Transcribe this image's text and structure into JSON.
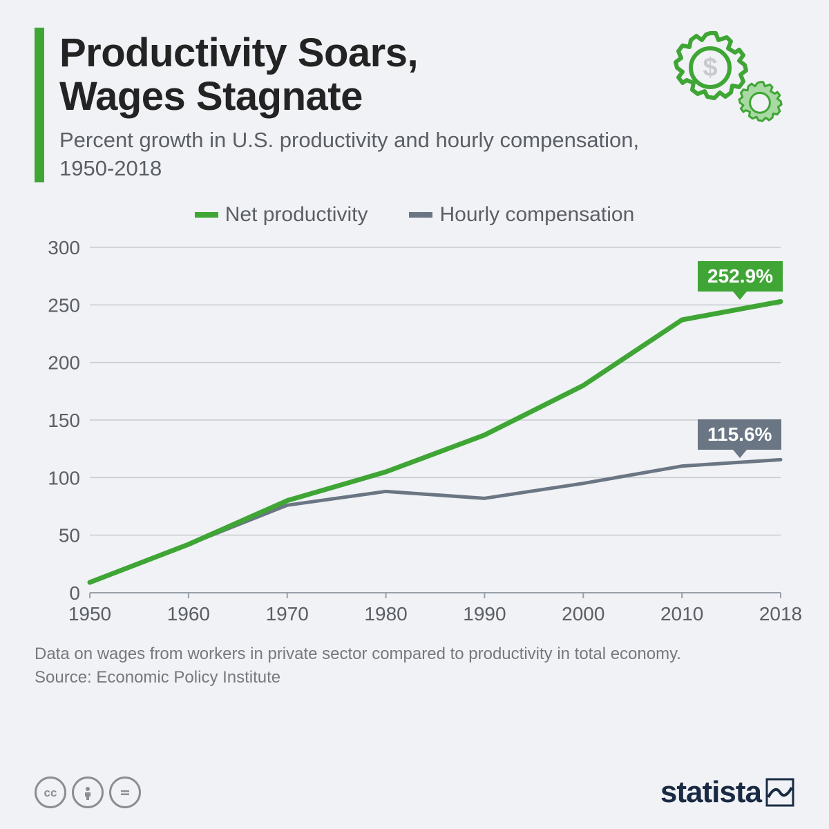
{
  "header": {
    "title_line1": "Productivity Soars,",
    "title_line2": "Wages Stagnate",
    "subtitle": "Percent growth in U.S. productivity and hourly compensation, 1950-2018",
    "accent_color": "#3fa535"
  },
  "icon": {
    "gear_stroke": "#3fa535",
    "gear_fill_small": "#a9d9a3",
    "dollar_color": "#c7cacf"
  },
  "legend": {
    "series1_label": "Net productivity",
    "series1_color": "#3fa535",
    "series2_label": "Hourly compensation",
    "series2_color": "#6b7684"
  },
  "chart": {
    "type": "line",
    "x_labels": [
      "1950",
      "1960",
      "1970",
      "1980",
      "1990",
      "2000",
      "2010",
      "2018"
    ],
    "y_ticks": [
      0,
      50,
      100,
      150,
      200,
      250,
      300
    ],
    "ylim": [
      0,
      300
    ],
    "axis_fontsize": 28,
    "axis_color": "#5a5e66",
    "grid_color": "#c7cacf",
    "grid_baseline_color": "#9aa0a8",
    "background_color": "#f0f2f5",
    "line_width_primary": 7,
    "line_width_secondary": 5,
    "series": {
      "net_productivity": {
        "color": "#3fa535",
        "values": [
          9,
          42,
          80,
          105,
          137,
          180,
          237,
          252.9
        ],
        "end_label": "252.9%"
      },
      "hourly_compensation": {
        "color": "#6b7684",
        "values": [
          9,
          42,
          76,
          88,
          82,
          95,
          110,
          115.6
        ],
        "end_label": "115.6%"
      }
    },
    "callout_productivity_bg": "#3fa535",
    "callout_compensation_bg": "#6b7684"
  },
  "footer": {
    "footnote": "Data on wages from workers in private sector compared to productivity in total economy.",
    "source": "Source: Economic Policy Institute",
    "brand": "statista",
    "cc_color": "#8a8d93",
    "brand_color": "#1a2a44"
  }
}
